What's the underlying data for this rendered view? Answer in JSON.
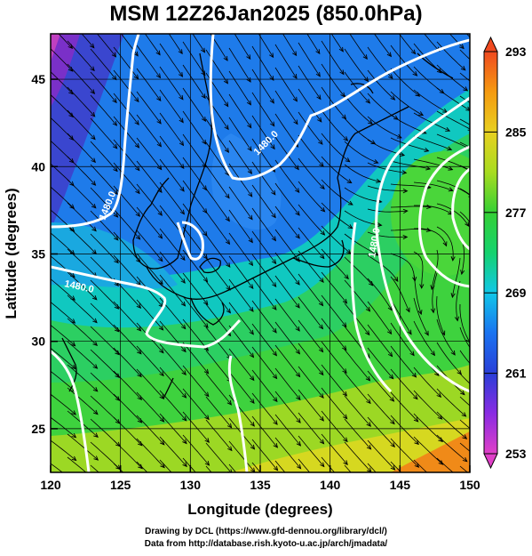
{
  "title": "MSM 12Z26Jan2025 (850.0hPa)",
  "axes": {
    "x": {
      "label": "Longitude (degrees)",
      "range": [
        120,
        150
      ],
      "ticks": [
        120,
        125,
        130,
        135,
        140,
        145,
        150
      ]
    },
    "y": {
      "label": "Latitude  (degrees)",
      "range": [
        22.5,
        47.6
      ],
      "ticks": [
        25,
        30,
        35,
        40,
        45
      ]
    }
  },
  "colorbar": {
    "ticks": [
      253,
      261,
      269,
      277,
      285,
      293
    ],
    "range": [
      253,
      293
    ],
    "stops": [
      "#e040c8",
      "#8a2be2",
      "#2a3fd8",
      "#1a73f0",
      "#11c7e8",
      "#15d26e",
      "#35d035",
      "#a8dc20",
      "#e8d020",
      "#f59a10",
      "#f04a20"
    ]
  },
  "contours": {
    "color": "#ffffff",
    "labels": [
      "1480.0",
      "1480.0",
      "1480.0",
      "1480.0"
    ]
  },
  "credits": {
    "line1": "Drawing by DCL (https://www.gfd-dennou.org/library/dcl/)",
    "line2": "Data from http://database.rish.kyoto-u.ac.jp/arch/jmadata/"
  }
}
